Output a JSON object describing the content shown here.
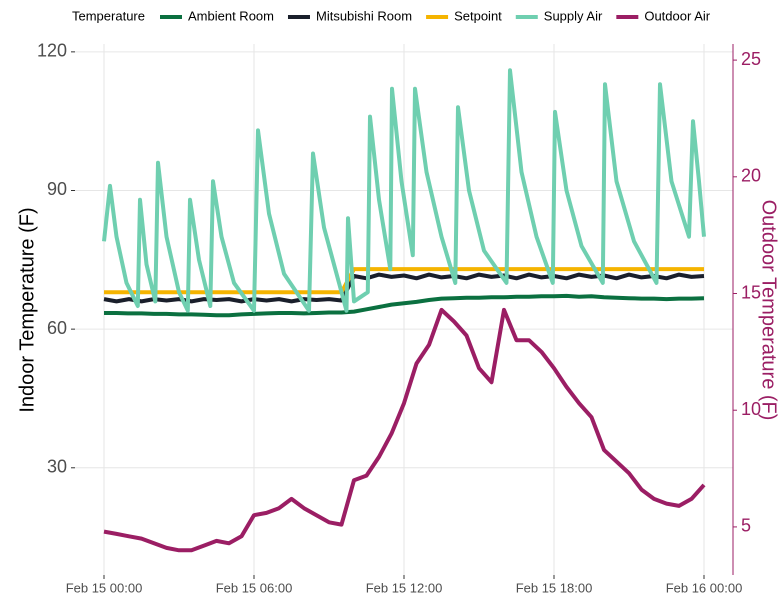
{
  "chart_data": {
    "type": "line",
    "legend_title": "Temperature",
    "legend": "top",
    "grid": true,
    "y_label": "Indoor Temperature (F)",
    "y2_label": "Outdoor Temperature (F)",
    "y2_color": "#9b1e64",
    "xlim": [
      -1.16,
      25.16
    ],
    "xticks": [
      {
        "value": 0,
        "label": "Feb 15 00:00"
      },
      {
        "value": 6,
        "label": "Feb 15 06:00"
      },
      {
        "value": 12,
        "label": "Feb 15 12:00"
      },
      {
        "value": 18,
        "label": "Feb 15 18:00"
      },
      {
        "value": 24,
        "label": "Feb 16 00:00"
      }
    ],
    "ylim": [
      6.8,
      121.7
    ],
    "yticks": [
      30,
      60,
      90,
      120
    ],
    "y2lim": [
      2.94,
      25.69
    ],
    "y2ticks": [
      5,
      10,
      15,
      20,
      25
    ],
    "x": [
      0,
      0.5,
      1,
      1.5,
      2,
      2.5,
      3,
      3.5,
      4,
      4.5,
      5,
      5.5,
      6,
      6.5,
      7,
      7.5,
      8,
      8.5,
      9,
      9.5,
      10,
      10.5,
      11,
      11.5,
      12,
      12.5,
      13,
      13.5,
      14,
      14.5,
      15,
      15.5,
      16,
      16.5,
      17,
      17.5,
      18,
      18.5,
      19,
      19.5,
      20,
      20.5,
      21,
      21.5,
      22,
      22.5,
      23,
      23.5,
      24
    ],
    "series": [
      {
        "name": "Ambient Room",
        "color": "#0b7040",
        "values": [
          63.5,
          63.5,
          63.4,
          63.4,
          63.3,
          63.3,
          63.2,
          63.2,
          63.1,
          63.0,
          63.0,
          63.2,
          63.3,
          63.4,
          63.5,
          63.5,
          63.4,
          63.5,
          63.6,
          63.6,
          63.8,
          64.3,
          64.8,
          65.3,
          65.6,
          65.9,
          66.3,
          66.6,
          66.7,
          66.8,
          66.8,
          66.9,
          66.9,
          67.0,
          67.0,
          67.1,
          67.1,
          67.2,
          67.0,
          67.1,
          66.9,
          66.8,
          66.7,
          66.6,
          66.6,
          66.5,
          66.6,
          66.6,
          66.7
        ]
      },
      {
        "name": "Mitsubishi Room",
        "color": "#1a1f2b",
        "values": [
          66.5,
          66,
          66.5,
          66,
          66.5,
          66.2,
          66.5,
          66,
          66.5,
          66.3,
          66.5,
          66,
          66.5,
          66.2,
          66.5,
          66,
          66.5,
          66.3,
          66.5,
          66.2,
          71.5,
          71,
          71.8,
          71.3,
          71.6,
          71,
          71.8,
          71.2,
          71.5,
          71,
          71.8,
          71.3,
          71.6,
          71,
          71.8,
          71.2,
          71.5,
          71,
          71.8,
          71.3,
          71.6,
          71,
          71.8,
          71.2,
          71.5,
          71,
          71.8,
          71.3,
          71.5
        ]
      },
      {
        "name": "Setpoint",
        "color": "#f5b400",
        "values": [
          68,
          68,
          68,
          68,
          68,
          68,
          68,
          68,
          68,
          68,
          68,
          68,
          68,
          68,
          68,
          68,
          68,
          68,
          68,
          68,
          73,
          73,
          73,
          73,
          73,
          73,
          73,
          73,
          73,
          73,
          73,
          73,
          73,
          73,
          73,
          73,
          73,
          73,
          73,
          73,
          73,
          73,
          73,
          73,
          73,
          73,
          73,
          73,
          73
        ]
      },
      {
        "name": "Supply Air",
        "color": "#6fcfb0",
        "x": [
          0,
          0.24,
          0.5,
          0.9,
          1.35,
          1.44,
          1.7,
          2.05,
          2.16,
          2.5,
          3.0,
          3.35,
          3.44,
          3.8,
          4.25,
          4.36,
          4.7,
          5.2,
          6.0,
          6.16,
          6.6,
          7.2,
          8.2,
          8.36,
          8.8,
          9.4,
          9.7,
          9.76,
          10.0,
          10.55,
          10.64,
          11.0,
          11.45,
          11.52,
          11.9,
          12.35,
          12.44,
          12.9,
          13.5,
          14.05,
          14.16,
          14.6,
          15.2,
          16.1,
          16.24,
          16.7,
          17.3,
          17.95,
          18.04,
          18.5,
          19.1,
          19.95,
          20.04,
          20.5,
          21.2,
          22.1,
          22.24,
          22.7,
          23.4,
          23.56,
          23.8,
          24
        ],
        "values": [
          79,
          91,
          80,
          70,
          65,
          88,
          74,
          66,
          96,
          80,
          68,
          64,
          88,
          75,
          65,
          92,
          80,
          70,
          64,
          103,
          85,
          72,
          64,
          98,
          82,
          70,
          64,
          84,
          66,
          68,
          106,
          88,
          73,
          112,
          92,
          76,
          112,
          94,
          80,
          70,
          108,
          90,
          77,
          70,
          116,
          94,
          80,
          70,
          107,
          90,
          78,
          70,
          113,
          92,
          79,
          70,
          113,
          92,
          80,
          105,
          92,
          80
        ]
      },
      {
        "name": "Outdoor Air",
        "color": "#9b1e64",
        "axis": "y2",
        "values": [
          4.8,
          4.7,
          4.6,
          4.5,
          4.3,
          4.1,
          4.0,
          4.0,
          4.2,
          4.4,
          4.3,
          4.6,
          5.5,
          5.6,
          5.8,
          6.2,
          5.8,
          5.5,
          5.2,
          5.1,
          7.0,
          7.2,
          8.0,
          9.0,
          10.3,
          12.0,
          12.8,
          14.3,
          13.8,
          13.2,
          11.8,
          11.2,
          14.3,
          13.0,
          13.0,
          12.5,
          11.8,
          11.0,
          10.3,
          9.7,
          8.3,
          7.8,
          7.3,
          6.6,
          6.2,
          6.0,
          5.9,
          6.2,
          6.8
        ]
      }
    ]
  }
}
